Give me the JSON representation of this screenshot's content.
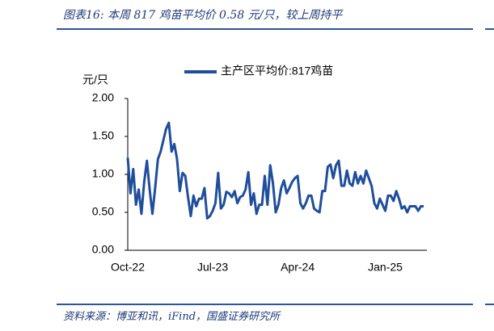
{
  "header": {
    "title": "图表16:  本周 817 鸡苗平均价 0.58 元/只，较上周持平"
  },
  "footer": {
    "source": "资料来源：博亚和讯，iFind，国盛证券研究所"
  },
  "chart_data": {
    "type": "line",
    "y_label": "元/只",
    "legend": "top",
    "ylim": [
      0,
      2
    ],
    "yticks": [
      {
        "value": 0,
        "label": "0.00"
      },
      {
        "value": 0.5,
        "label": "0.50"
      },
      {
        "value": 1,
        "label": "1.00"
      },
      {
        "value": 1.5,
        "label": "1.50"
      },
      {
        "value": 2,
        "label": "2.00"
      }
    ],
    "categories": [
      "Oct-22",
      null,
      null,
      null,
      null,
      null,
      null,
      null,
      null,
      null,
      null,
      null,
      null,
      null,
      null,
      null,
      null,
      null,
      null,
      null,
      null,
      null,
      null,
      null,
      null,
      null,
      null,
      null,
      null,
      null,
      null,
      "Jul-23",
      null,
      null,
      null,
      null,
      null,
      null,
      null,
      null,
      null,
      null,
      null,
      null,
      null,
      null,
      null,
      null,
      null,
      null,
      null,
      null,
      null,
      null,
      null,
      null,
      null,
      null,
      null,
      null,
      null,
      null,
      "Apr-24",
      null,
      null,
      null,
      null,
      null,
      null,
      null,
      null,
      null,
      null,
      null,
      null,
      null,
      null,
      null,
      null,
      null,
      null,
      null,
      null,
      null,
      null,
      null,
      null,
      null,
      null,
      null,
      null,
      null,
      null,
      null,
      "Jan-25",
      null,
      null,
      null,
      null,
      null,
      null,
      null,
      null,
      null,
      null,
      null,
      null,
      null,
      null
    ],
    "series": [
      {
        "name": "主产区平均价:817鸡苗",
        "color": "#1f4e9c",
        "values": [
          1.22,
          0.75,
          1.07,
          0.6,
          0.8,
          0.48,
          0.9,
          1.18,
          0.8,
          0.48,
          0.82,
          1.2,
          1.3,
          1.45,
          1.6,
          1.68,
          1.3,
          1.4,
          1.2,
          0.78,
          1.02,
          0.98,
          0.7,
          0.45,
          0.72,
          0.58,
          0.68,
          0.68,
          0.82,
          0.42,
          0.45,
          0.52,
          0.62,
          1.02,
          0.55,
          0.6,
          0.77,
          0.75,
          0.7,
          0.78,
          0.62,
          0.7,
          0.72,
          0.8,
          1.03,
          0.6,
          0.75,
          0.48,
          0.6,
          0.6,
          0.98,
          0.6,
          1.12,
          0.88,
          0.5,
          0.6,
          0.82,
          0.92,
          0.75,
          0.82,
          0.9,
          0.95,
          0.98,
          0.62,
          0.55,
          0.62,
          0.72,
          0.72,
          0.55,
          0.52,
          0.5,
          0.78,
          0.78,
          1.1,
          1.13,
          0.95,
          1.12,
          1.18,
          0.85,
          0.85,
          1.05,
          0.88,
          0.85,
          1.03,
          0.88,
          0.98,
          0.88,
          1.05,
          0.95,
          0.85,
          0.62,
          0.55,
          0.68,
          0.6,
          0.52,
          0.72,
          0.72,
          0.65,
          0.78,
          0.68,
          0.55,
          0.58,
          0.5,
          0.58,
          0.58,
          0.58,
          0.52,
          0.58,
          0.58
        ]
      }
    ]
  }
}
